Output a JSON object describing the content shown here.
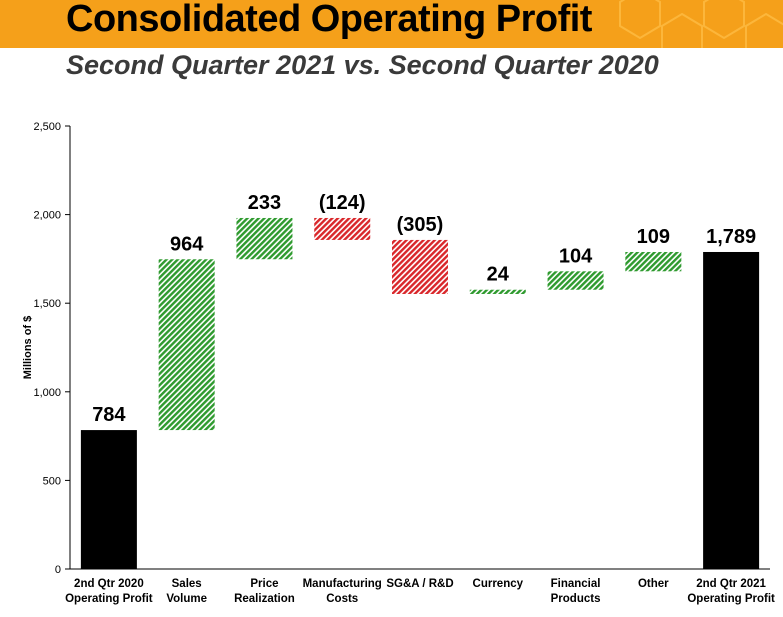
{
  "header": {
    "title": "Consolidated Operating Profit",
    "subtitle": "Second Quarter 2021 vs. Second Quarter 2020"
  },
  "colors": {
    "banner": "#f5a01a",
    "total": "#000000",
    "increase": "#2e9a2e",
    "decrease": "#d9262a"
  },
  "chart_data": {
    "type": "bar",
    "subtype": "waterfall",
    "ylabel": "Millions of $",
    "ylim": [
      0,
      2500
    ],
    "yticks": [
      "0",
      "500",
      "1,000",
      "1,500",
      "2,000",
      "2,500"
    ],
    "ytick_values": [
      0,
      500,
      1000,
      1500,
      2000,
      2500
    ],
    "grid": false,
    "categories": [
      [
        "2nd Qtr 2020",
        "Operating Profit"
      ],
      [
        "Sales",
        "Volume"
      ],
      [
        "Price",
        "Realization"
      ],
      [
        "Manufacturing",
        "Costs"
      ],
      [
        "SG&A / R&D"
      ],
      [
        "Currency"
      ],
      [
        "Financial",
        "Products"
      ],
      [
        "Other"
      ],
      [
        "2nd Qtr 2021",
        "Operating Profit"
      ]
    ],
    "values": [
      784,
      964,
      233,
      -124,
      -305,
      24,
      104,
      109,
      1789
    ],
    "kinds": [
      "total",
      "increase",
      "increase",
      "decrease",
      "decrease",
      "increase",
      "increase",
      "increase",
      "total"
    ],
    "data_labels": [
      "784",
      "964",
      "233",
      "(124)",
      "(305)",
      "24",
      "104",
      "109",
      "1,789"
    ]
  }
}
